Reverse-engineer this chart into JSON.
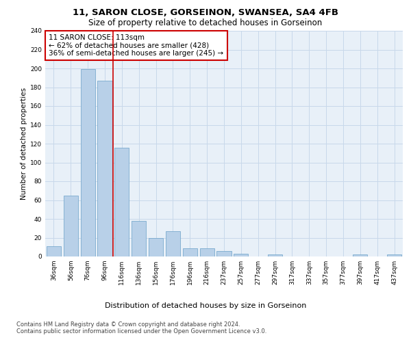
{
  "title1": "11, SARON CLOSE, GORSEINON, SWANSEA, SA4 4FB",
  "title2": "Size of property relative to detached houses in Gorseinon",
  "xlabel": "Distribution of detached houses by size in Gorseinon",
  "ylabel": "Number of detached properties",
  "bar_values": [
    11,
    65,
    199,
    187,
    116,
    38,
    20,
    27,
    9,
    9,
    6,
    3,
    0,
    2,
    0,
    0,
    0,
    0,
    2,
    0,
    2
  ],
  "bar_labels": [
    "36sqm",
    "56sqm",
    "76sqm",
    "96sqm",
    "116sqm",
    "136sqm",
    "156sqm",
    "176sqm",
    "196sqm",
    "216sqm",
    "237sqm",
    "257sqm",
    "277sqm",
    "297sqm",
    "317sqm",
    "337sqm",
    "357sqm",
    "377sqm",
    "397sqm",
    "417sqm",
    "437sqm"
  ],
  "bar_color": "#b8d0e8",
  "bar_edge_color": "#6aa0c8",
  "grid_color": "#c8d8ea",
  "background_color": "#e8f0f8",
  "vline_x": 3.5,
  "vline_color": "#cc0000",
  "annotation_text": "11 SARON CLOSE: 113sqm\n← 62% of detached houses are smaller (428)\n36% of semi-detached houses are larger (245) →",
  "annotation_box_color": "#ffffff",
  "annotation_box_edge": "#cc0000",
  "ylim": [
    0,
    240
  ],
  "yticks": [
    0,
    20,
    40,
    60,
    80,
    100,
    120,
    140,
    160,
    180,
    200,
    220,
    240
  ],
  "footnote": "Contains HM Land Registry data © Crown copyright and database right 2024.\nContains public sector information licensed under the Open Government Licence v3.0.",
  "title1_fontsize": 9.5,
  "title2_fontsize": 8.5,
  "xlabel_fontsize": 8,
  "ylabel_fontsize": 7.5,
  "tick_fontsize": 6.5,
  "annot_fontsize": 7.5,
  "footnote_fontsize": 6
}
